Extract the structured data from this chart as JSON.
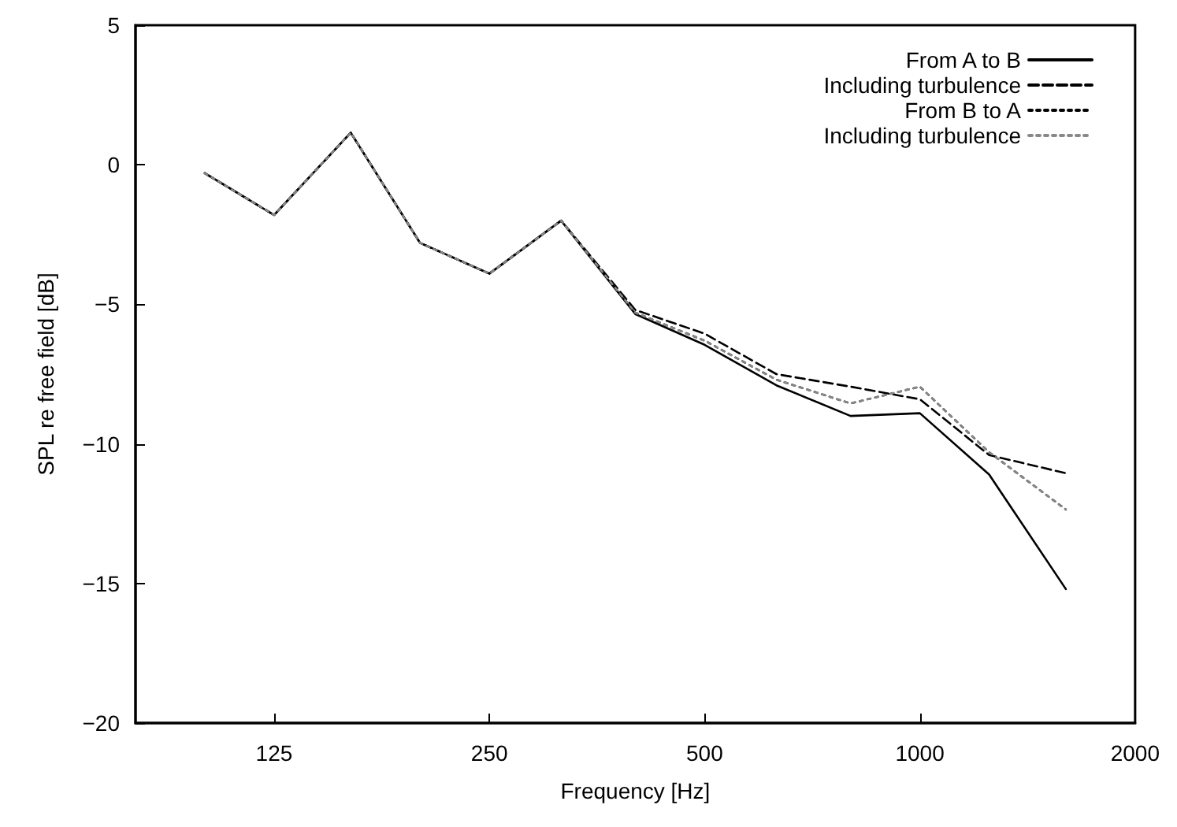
{
  "chart_data": {
    "type": "line",
    "xlabel": "Frequency [Hz]",
    "ylabel": "SPL re free field [dB]",
    "x": [
      100,
      125,
      160,
      200,
      250,
      315,
      400,
      500,
      630,
      800,
      1000,
      1250,
      1600
    ],
    "series": [
      {
        "name": "From A to B",
        "color": "#000000",
        "line_style": "solid",
        "values": [
          -0.3,
          -1.8,
          1.15,
          -2.8,
          -3.9,
          -2.0,
          -5.35,
          -6.45,
          -7.9,
          -9.0,
          -8.9,
          -11.1,
          -15.2
        ]
      },
      {
        "name": "Including turbulence",
        "color": "#000000",
        "line_style": "dashed",
        "values": [
          -0.3,
          -1.8,
          1.15,
          -2.8,
          -3.9,
          -2.0,
          -5.2,
          -6.05,
          -7.5,
          -7.95,
          -8.4,
          -10.4,
          -11.05
        ]
      },
      {
        "name": "From B to A",
        "color": "#000000",
        "line_style": "dotted",
        "values": [
          -0.3,
          -1.8,
          1.15,
          -2.8,
          -3.9,
          -2.0,
          -5.3,
          -6.3,
          -7.7,
          -8.55,
          -7.95,
          -10.3,
          -12.35
        ]
      },
      {
        "name": "Including turbulence",
        "color": "#888888",
        "line_style": "dotted",
        "values": [
          -0.3,
          -1.8,
          1.15,
          -2.8,
          -3.9,
          -2.0,
          -5.3,
          -6.3,
          -7.7,
          -8.55,
          -7.95,
          -10.3,
          -12.35
        ]
      }
    ],
    "log": "x",
    "xlim": [
      80,
      2000
    ],
    "xticks": [
      125,
      250,
      500,
      1000,
      2000
    ],
    "ylim": [
      -20,
      5
    ],
    "yticks": [
      -20,
      -15,
      -10,
      -5,
      0,
      5
    ],
    "grid": false,
    "legend": "top right",
    "marker": "none"
  }
}
